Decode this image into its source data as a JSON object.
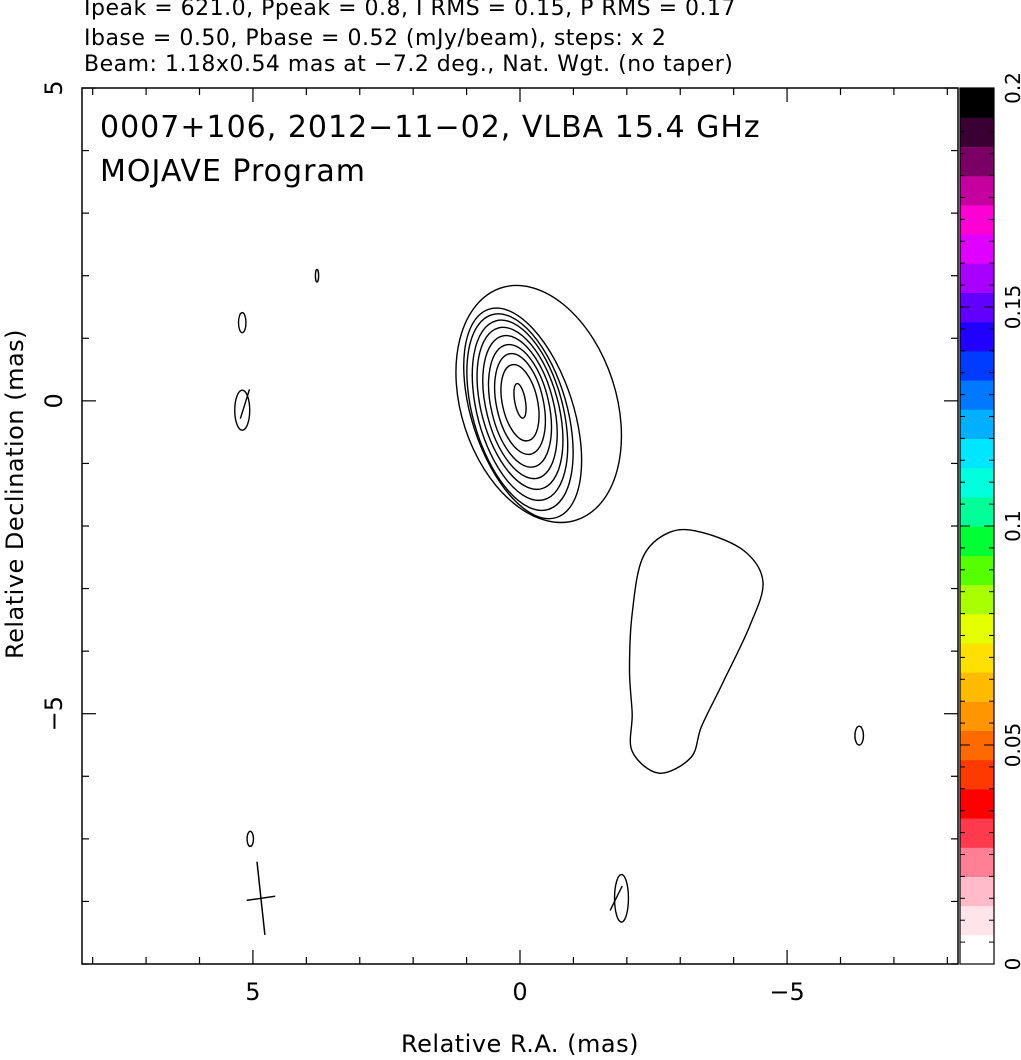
{
  "header": {
    "line1": "Ipeak = 621.0, Ppeak = 0.8, I RMS = 0.15, P RMS = 0.17",
    "line2": "Ibase = 0.50, Pbase = 0.52 (mJy/beam), steps: x 2",
    "line3": "Beam: 1.18x0.54 mas at −7.2 deg., Nat. Wgt. (no taper)"
  },
  "title": {
    "line1": "0007+106, 2012−11−02, VLBA 15.4 GHz",
    "line2": "MOJAVE Program"
  },
  "chart_data": {
    "type": "contour",
    "xlabel": "Relative R.A. (mas)",
    "ylabel": "Relative Declination (mas)",
    "xlim": [
      8.2,
      -8.2
    ],
    "ylim": [
      -9.0,
      5.0
    ],
    "x_ticks": [
      {
        "value": 5,
        "label": "5"
      },
      {
        "value": 0,
        "label": "0"
      },
      {
        "value": -5,
        "label": "−5"
      }
    ],
    "y_ticks": [
      {
        "value": 5,
        "label": "5"
      },
      {
        "value": 0,
        "label": "0"
      },
      {
        "value": -5,
        "label": "−5"
      }
    ],
    "core": {
      "x": 0.0,
      "y": 0.0
    },
    "core_contours": [
      {
        "level_mJy": 0.5,
        "rx": 1.45,
        "ry": 1.95,
        "dx": -0.35,
        "dy": -0.05,
        "tilt_deg": -18
      },
      {
        "level_mJy": 1.0,
        "rx": 0.95,
        "ry": 1.75,
        "dx": -0.05,
        "dy": -0.2,
        "tilt_deg": -18
      },
      {
        "level_mJy": 2.0,
        "rx": 0.88,
        "ry": 1.62,
        "dx": 0.0,
        "dy": -0.18,
        "tilt_deg": -16
      },
      {
        "level_mJy": 4.0,
        "rx": 0.8,
        "ry": 1.48,
        "dx": 0.0,
        "dy": -0.15,
        "tilt_deg": -15
      },
      {
        "level_mJy": 8.0,
        "rx": 0.72,
        "ry": 1.33,
        "dx": 0.0,
        "dy": -0.12,
        "tilt_deg": -15
      },
      {
        "level_mJy": 16.0,
        "rx": 0.63,
        "ry": 1.17,
        "dx": 0.0,
        "dy": -0.1,
        "tilt_deg": -14
      },
      {
        "level_mJy": 32.0,
        "rx": 0.54,
        "ry": 1.0,
        "dx": 0.0,
        "dy": -0.08,
        "tilt_deg": -13
      },
      {
        "level_mJy": 64.0,
        "rx": 0.44,
        "ry": 0.82,
        "dx": 0.0,
        "dy": -0.05,
        "tilt_deg": -12
      },
      {
        "level_mJy": 128.0,
        "rx": 0.33,
        "ry": 0.62,
        "dx": 0.0,
        "dy": -0.03,
        "tilt_deg": -12
      },
      {
        "level_mJy": 256.0,
        "rx": 0.1,
        "ry": 0.28,
        "dx": 0.0,
        "dy": 0.0,
        "tilt_deg": -10
      }
    ],
    "jet_blob": [
      [
        -2.3,
        -2.5
      ],
      [
        -2.8,
        -2.1
      ],
      [
        -3.4,
        -2.1
      ],
      [
        -4.2,
        -2.4
      ],
      [
        -4.55,
        -2.9
      ],
      [
        -4.3,
        -3.6
      ],
      [
        -3.8,
        -4.5
      ],
      [
        -3.4,
        -5.2
      ],
      [
        -3.2,
        -5.7
      ],
      [
        -2.6,
        -5.95
      ],
      [
        -2.1,
        -5.6
      ],
      [
        -2.1,
        -5.0
      ],
      [
        -2.05,
        -4.3
      ],
      [
        -2.1,
        -3.4
      ]
    ],
    "noise_islands": [
      {
        "x": 3.8,
        "y": 2.0,
        "rx": 0.03,
        "ry": 0.1
      },
      {
        "x": 5.2,
        "y": 1.25,
        "rx": 0.07,
        "ry": 0.16
      },
      {
        "x": 5.2,
        "y": -0.15,
        "rx": 0.14,
        "ry": 0.32
      },
      {
        "x": 5.05,
        "y": -7.0,
        "rx": 0.06,
        "ry": 0.12
      },
      {
        "x": -1.9,
        "y": -7.95,
        "rx": 0.13,
        "ry": 0.38
      },
      {
        "x": -6.35,
        "y": -5.35,
        "rx": 0.08,
        "ry": 0.15
      }
    ],
    "polarization_vectors": [
      {
        "x": 5.15,
        "y": -0.05,
        "len": 0.5,
        "angle_deg": 20
      },
      {
        "x": -1.8,
        "y": -7.95,
        "len": 0.45,
        "angle_deg": 30
      }
    ],
    "beam": {
      "x": 4.85,
      "y": -7.95,
      "major_mas": 1.18,
      "minor_mas": 0.54,
      "pa_deg": -7.2
    },
    "colorbar": {
      "range": [
        0,
        0.2
      ],
      "tick_labels": [
        "0",
        "0.05",
        "0.1",
        "0.15",
        "0.2"
      ],
      "tick_values": [
        0,
        0.05,
        0.1,
        0.15,
        0.2
      ],
      "colors": [
        "#ffffff",
        "#ffe4ea",
        "#ffbbc8",
        "#ff7f95",
        "#ff3a4d",
        "#ff0000",
        "#ff3a00",
        "#ff6a00",
        "#ff9500",
        "#ffbb00",
        "#ffe000",
        "#e6ff00",
        "#a8ff00",
        "#55ff00",
        "#00ff33",
        "#00ff99",
        "#00ffdd",
        "#00e6ff",
        "#00b0ff",
        "#0078ff",
        "#003cff",
        "#2200ff",
        "#6200ff",
        "#a800ff",
        "#e000ff",
        "#ff00d4",
        "#c4009f",
        "#7a0066",
        "#3a0033",
        "#000000"
      ]
    }
  }
}
